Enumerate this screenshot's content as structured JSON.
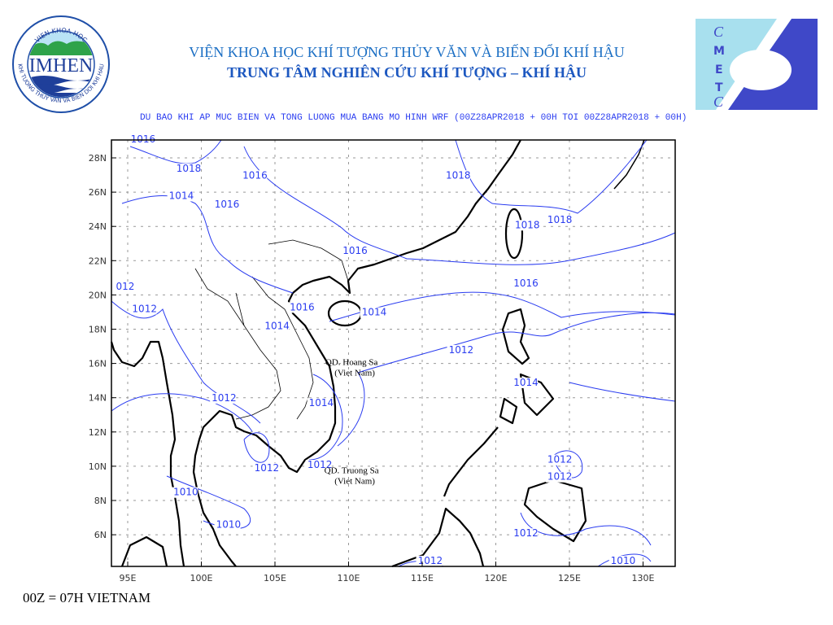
{
  "header": {
    "institute": "VIỆN KHOA HỌC KHÍ TƯỢNG THỦY VĂN VÀ BIẾN ĐỔI KHÍ HẬU",
    "center": "TRUNG TÂM NGHIÊN CỨU KHÍ TƯỢNG – KHÍ HẬU"
  },
  "logos": {
    "left": {
      "ring_text_top": "VIEN KHOA HOC",
      "ring_text_bottom": "KHI TUONG THUY VAN VA BIEN DOI KHI HAU",
      "name": "IMHEN"
    },
    "right": {
      "letters": [
        "C",
        "M",
        "E",
        "T",
        "C"
      ],
      "colors": {
        "light": "#a8e0ee",
        "dark": "#3f48c8"
      }
    }
  },
  "map": {
    "title": "DU BAO KHI AP MUC BIEN VA TONG LUONG MUA BANG MO HINH WRF (00Z28APR2018 + 00H TOI 00Z28APR2018 + 00H)",
    "lon_ticks": [
      "95E",
      "100E",
      "105E",
      "110E",
      "115E",
      "120E",
      "125E",
      "130E"
    ],
    "lat_ticks": [
      "6N",
      "8N",
      "10N",
      "12N",
      "14N",
      "16N",
      "18N",
      "20N",
      "22N",
      "24N",
      "26N",
      "28N"
    ],
    "lon_range": [
      94,
      132.2
    ],
    "lat_range": [
      4.1,
      29.0
    ],
    "contour_color": "#2a3cf0",
    "contour_labels": [
      {
        "text": "1016",
        "lon": 95.2,
        "lat": 28.9
      },
      {
        "text": "1018",
        "lon": 98.3,
        "lat": 27.2
      },
      {
        "text": "1014",
        "lon": 97.8,
        "lat": 25.6
      },
      {
        "text": "1016",
        "lon": 102.8,
        "lat": 26.8
      },
      {
        "text": "1016",
        "lon": 100.9,
        "lat": 25.1
      },
      {
        "text": "1018",
        "lon": 116.6,
        "lat": 26.8
      },
      {
        "text": "1018",
        "lon": 121.3,
        "lat": 23.9
      },
      {
        "text": "1018",
        "lon": 123.5,
        "lat": 24.2
      },
      {
        "text": "1016",
        "lon": 109.6,
        "lat": 22.4
      },
      {
        "text": "1016",
        "lon": 121.2,
        "lat": 20.5
      },
      {
        "text": "1014",
        "lon": 110.9,
        "lat": 18.8
      },
      {
        "text": "1016",
        "lon": 106.0,
        "lat": 19.1
      },
      {
        "text": "1014",
        "lon": 104.3,
        "lat": 18.0
      },
      {
        "text": "1012",
        "lon": 95.3,
        "lat": 19.0
      },
      {
        "text": "012",
        "lon": 94.2,
        "lat": 20.3
      },
      {
        "text": "1012",
        "lon": 116.8,
        "lat": 16.6
      },
      {
        "text": "1014",
        "lon": 121.2,
        "lat": 14.7
      },
      {
        "text": "1012",
        "lon": 100.7,
        "lat": 13.8
      },
      {
        "text": "1014",
        "lon": 107.3,
        "lat": 13.5
      },
      {
        "text": "1012",
        "lon": 107.2,
        "lat": 9.9
      },
      {
        "text": "1012",
        "lon": 103.6,
        "lat": 9.7
      },
      {
        "text": "1010",
        "lon": 98.1,
        "lat": 8.3
      },
      {
        "text": "1010",
        "lon": 101.0,
        "lat": 6.4
      },
      {
        "text": "1012",
        "lon": 123.5,
        "lat": 10.2
      },
      {
        "text": "1012",
        "lon": 123.5,
        "lat": 9.2
      },
      {
        "text": "1012",
        "lon": 121.2,
        "lat": 5.9
      },
      {
        "text": "1010",
        "lon": 127.8,
        "lat": 4.3
      },
      {
        "text": "1012",
        "lon": 114.7,
        "lat": 4.3
      }
    ],
    "islands": [
      {
        "line1": "QD. Hoang Sa",
        "line2": "(Viet Nam)",
        "lon": 110.2,
        "lat": 15.9
      },
      {
        "line1": "QD. Truong Sa",
        "line2": "(Viet Nam)",
        "lon": 110.2,
        "lat": 9.6
      }
    ]
  },
  "footer": "00Z = 07H VIETNAM"
}
